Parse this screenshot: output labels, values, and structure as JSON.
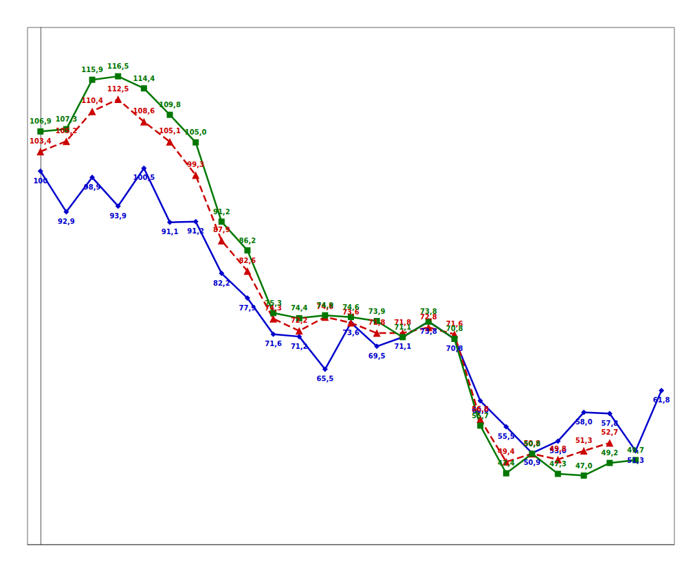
{
  "chart_data": {
    "type": "line",
    "x": [
      0,
      1,
      2,
      3,
      4,
      5,
      6,
      7,
      8,
      9,
      10,
      11,
      12,
      13,
      14,
      15,
      16,
      17,
      18,
      19,
      20,
      21,
      22,
      23,
      24
    ],
    "xlim": [
      -0.5,
      24.5
    ],
    "ylim": [
      35,
      125
    ],
    "tick_labels": false,
    "grid": false,
    "data_labels": true,
    "series": [
      {
        "color": "#0000cc",
        "marker": "diamond",
        "line_style": "solid",
        "values": [
          100.0,
          92.9,
          98.9,
          93.9,
          100.5,
          91.1,
          91.2,
          82.2,
          77.9,
          71.6,
          71.2,
          65.5,
          73.6,
          69.5,
          71.1,
          73.8,
          70.8,
          60.0,
          55.5,
          50.9,
          53.0,
          58.0,
          57.8,
          51.3,
          61.8
        ],
        "value_labels": [
          "100",
          "92,9",
          "98,9",
          "93,9",
          "100,5",
          "91,1",
          "91,2",
          "82,2",
          "77,9",
          "71,6",
          "71,2",
          "65,5",
          "73,6",
          "69,5",
          "71,1",
          "73,8",
          "70,8",
          "60,0",
          "55,5",
          "50,9",
          "53,0",
          "58,0",
          "57,8",
          "51,3",
          "61,8"
        ]
      },
      {
        "color": "#cc0000",
        "marker": "triangle",
        "line_style": "dashed",
        "values": [
          103.4,
          105.2,
          110.4,
          112.5,
          108.6,
          105.1,
          99.3,
          87.9,
          82.6,
          74.3,
          72.2,
          74.6,
          73.6,
          71.8,
          71.8,
          72.8,
          71.6,
          56.8,
          49.4,
          50.8,
          49.8,
          51.3,
          52.7,
          null,
          null
        ],
        "value_labels": [
          "103,4",
          "105,2",
          "110,4",
          "112,5",
          "108,6",
          "105,1",
          "99,3",
          "87,9",
          "82,6",
          "74,3",
          "72,2",
          "74,6",
          "73,6",
          "71,8",
          "71,8",
          "72,8",
          "71,6",
          "56,8",
          "49,4",
          "50,8",
          "49,8",
          "51,3",
          "52,7",
          null,
          null
        ]
      },
      {
        "color": "#007700",
        "marker": "square",
        "line_style": "solid",
        "values": [
          106.9,
          107.3,
          115.9,
          116.5,
          114.4,
          109.8,
          105.0,
          91.2,
          86.2,
          75.3,
          74.4,
          74.9,
          74.6,
          73.9,
          71.1,
          73.8,
          70.8,
          55.7,
          47.4,
          50.8,
          47.3,
          47.0,
          49.2,
          49.7,
          null
        ],
        "value_labels": [
          "106,9",
          "107,3",
          "115,9",
          "116,5",
          "114,4",
          "109,8",
          "105,0",
          "91,2",
          "86,2",
          "75,3",
          "74,4",
          "74,9",
          "74,6",
          "73,9",
          "71,1",
          "73,8",
          "70,8",
          "55,7",
          "47,4",
          "50,8",
          "47,3",
          "47,0",
          "49,2",
          "49,7",
          null
        ]
      }
    ]
  }
}
